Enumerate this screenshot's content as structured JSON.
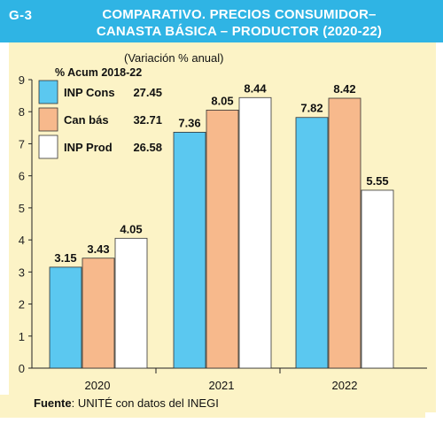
{
  "header": {
    "chart_id": "G-3",
    "title_line1": "COMPARATIVO. PRECIOS CONSUMIDOR–",
    "title_line2": "CANASTA BÁSICA – PRODUCTOR (2020-22)"
  },
  "footer": {
    "source_label": "Fuente",
    "source_text": ": UNITÉ con datos del INEGI"
  },
  "colors": {
    "header_bg": "#2fb4e4",
    "panel_bg": "#fcf3c6",
    "inp_cons": "#5bc8f0",
    "can_bas": "#f7b98c",
    "inp_prod": "#ffffff"
  },
  "chart_data": {
    "type": "bar",
    "unit_label": "(Variación % anual)",
    "categories": [
      "2020",
      "2021",
      "2022"
    ],
    "ylim": [
      0,
      9
    ],
    "yticks": [
      0,
      1,
      2,
      3,
      4,
      5,
      6,
      7,
      8,
      9
    ],
    "grid": false,
    "legend_title": "% Acum 2018-22",
    "legend_position": "top-left",
    "series": [
      {
        "name": "INP Cons",
        "acum": "27.45",
        "color": "#5bc8f0",
        "values": [
          3.15,
          7.36,
          7.82
        ],
        "labels": [
          "3.15",
          "7.36",
          "7.82"
        ]
      },
      {
        "name": "Can bás",
        "acum": "32.71",
        "color": "#f7b98c",
        "values": [
          3.43,
          8.05,
          8.42
        ],
        "labels": [
          "3.43",
          "8.05",
          "8.42"
        ]
      },
      {
        "name": "INP Prod",
        "acum": "26.58",
        "color": "#ffffff",
        "values": [
          4.05,
          8.44,
          5.55
        ],
        "labels": [
          "4.05",
          "8.44",
          "5.55"
        ]
      }
    ]
  }
}
